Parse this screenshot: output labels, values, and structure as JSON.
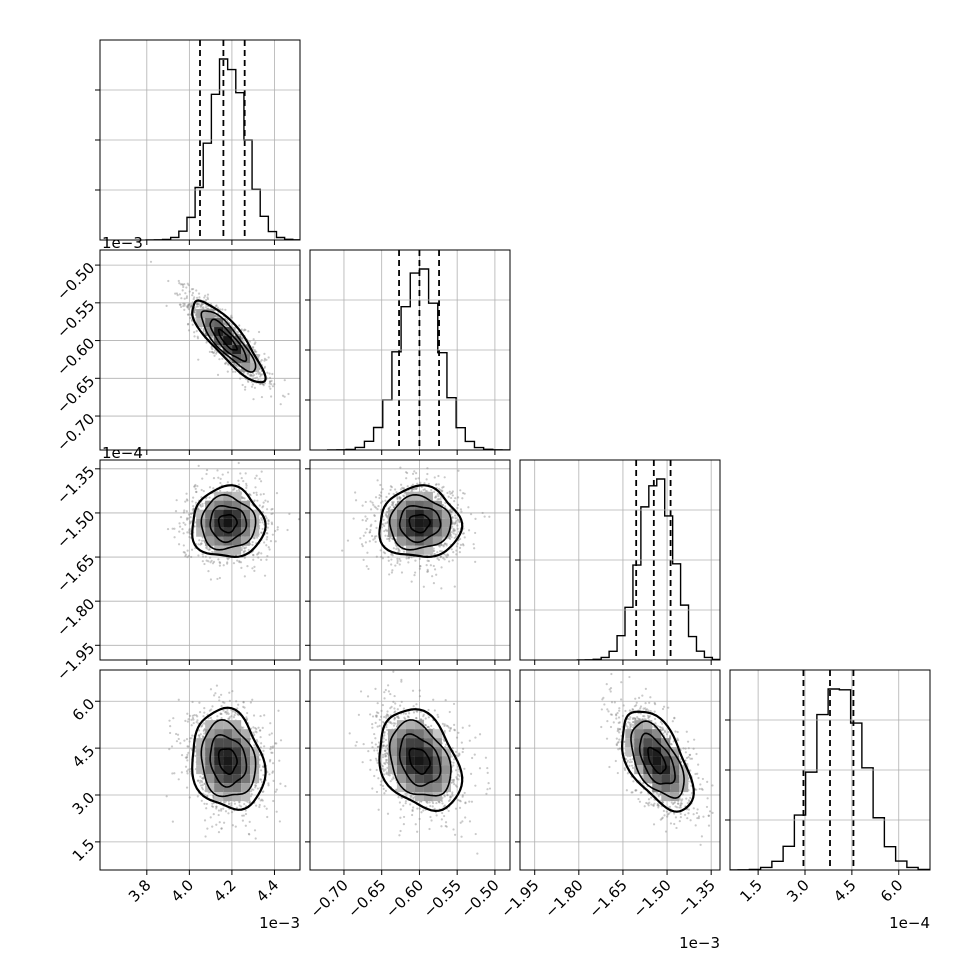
{
  "chart_data": {
    "type": "corner",
    "grid": true,
    "axes": [
      {
        "range": [
          3.58,
          4.52
        ],
        "ticks": [
          3.8,
          4.0,
          4.2,
          4.4
        ],
        "tick_labels": [
          "3.8",
          "4.0",
          "4.2",
          "4.4"
        ],
        "offset": "1e−3",
        "quantiles": [
          4.05,
          4.16,
          4.26
        ],
        "mode": 4.18,
        "sigma": 0.085
      },
      {
        "range": [
          -0.745,
          -0.48
        ],
        "ticks": [
          -0.7,
          -0.65,
          -0.6,
          -0.55,
          -0.5
        ],
        "tick_labels": [
          "−0.70",
          "−0.65",
          "−0.60",
          "−0.55",
          "−0.50"
        ],
        "offset": "",
        "quantiles": [
          -0.627,
          -0.6,
          -0.574
        ],
        "mode": -0.6,
        "sigma": 0.027
      },
      {
        "range": [
          -2.0,
          -1.32
        ],
        "ticks": [
          -1.95,
          -1.8,
          -1.65,
          -1.5,
          -1.35
        ],
        "tick_labels": [
          "−1.95",
          "−1.80",
          "−1.65",
          "−1.50",
          "−1.35"
        ],
        "offset": "1e−3",
        "quantiles": [
          -1.605,
          -1.545,
          -1.488
        ],
        "mode": -1.535,
        "sigma": 0.06
      },
      {
        "range": [
          0.6,
          7.0
        ],
        "ticks": [
          1.5,
          3.0,
          4.5,
          6.0
        ],
        "tick_labels": [
          "1.5",
          "3.0",
          "4.5",
          "6.0"
        ],
        "offset": "1e−4",
        "quantiles": [
          2.95,
          3.8,
          4.55
        ],
        "mode": 4.1,
        "sigma": 0.8
      }
    ],
    "row_offsets": [
      "",
      "1e−3",
      "1e−4",
      ""
    ],
    "histogram_bins": 20,
    "contour_levels": 4,
    "line_color": "#000000",
    "point_color": "#888888",
    "grid_color": "#b0b0b0"
  }
}
